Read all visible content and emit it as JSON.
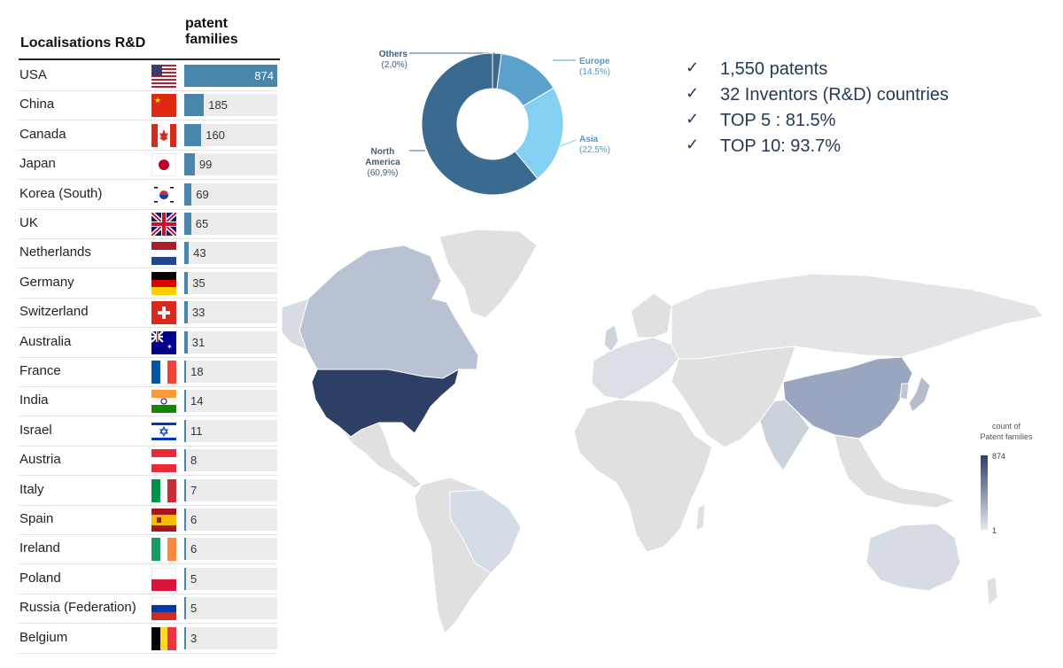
{
  "table": {
    "header_location": "Localisations R&D",
    "header_families": "patent families",
    "rows": [
      {
        "country": "USA",
        "value": 874,
        "flag": "us-flag"
      },
      {
        "country": "China",
        "value": 185,
        "flag": "cn-flag"
      },
      {
        "country": "Canada",
        "value": 160,
        "flag": "ca-flag"
      },
      {
        "country": "Japan",
        "value": 99,
        "flag": "jp-flag"
      },
      {
        "country": "Korea (South)",
        "value": 69,
        "flag": "kr-flag"
      },
      {
        "country": "UK",
        "value": 65,
        "flag": "uk-flag"
      },
      {
        "country": "Netherlands",
        "value": 43,
        "flag": "nl-flag"
      },
      {
        "country": "Germany",
        "value": 35,
        "flag": "de-flag"
      },
      {
        "country": "Switzerland",
        "value": 33,
        "flag": "ch-flag"
      },
      {
        "country": "Australia",
        "value": 31,
        "flag": "au-flag"
      },
      {
        "country": "France",
        "value": 18,
        "flag": "fr-flag"
      },
      {
        "country": "India",
        "value": 14,
        "flag": "in-flag"
      },
      {
        "country": "Israel",
        "value": 11,
        "flag": "il-flag"
      },
      {
        "country": "Austria",
        "value": 8,
        "flag": "at-flag"
      },
      {
        "country": "Italy",
        "value": 7,
        "flag": "it-flag"
      },
      {
        "country": "Spain",
        "value": 6,
        "flag": "es-flag"
      },
      {
        "country": "Ireland",
        "value": 6,
        "flag": "ie-flag"
      },
      {
        "country": "Poland",
        "value": 5,
        "flag": "pl-flag"
      },
      {
        "country": "Russia (Federation)",
        "value": 5,
        "flag": "ru-flag"
      },
      {
        "country": "Belgium",
        "value": 3,
        "flag": "be-flag"
      }
    ]
  },
  "bullets": {
    "check_icon": "check-icon",
    "items": [
      "1,550 patents",
      "32 Inventors (R&D) countries",
      "TOP 5  : 81.5%",
      "TOP 10: 93.7%"
    ]
  },
  "map_legend": {
    "title_line1": "count of",
    "title_line2": "Patent families",
    "max_label": "874",
    "min_label": "1"
  },
  "colors": {
    "bar": "#4a86ab",
    "usa_fill": "#2e3f66",
    "china_fill": "#9aa6c0",
    "canada_fill": "#b9c2d3",
    "land_fill": "#dddddd"
  },
  "chart_data": [
    {
      "type": "bar",
      "orientation": "horizontal",
      "categories": [
        "USA",
        "China",
        "Canada",
        "Japan",
        "Korea (South)",
        "UK",
        "Netherlands",
        "Germany",
        "Switzerland",
        "Australia",
        "France",
        "India",
        "Israel",
        "Austria",
        "Italy",
        "Spain",
        "Ireland",
        "Poland",
        "Russia (Federation)",
        "Belgium"
      ],
      "values": [
        874,
        185,
        160,
        99,
        69,
        65,
        43,
        35,
        33,
        31,
        18,
        14,
        11,
        8,
        7,
        6,
        6,
        5,
        5,
        3
      ],
      "xlim": [
        0,
        874
      ]
    },
    {
      "type": "pie",
      "style": "donut",
      "slices": [
        {
          "label": "Others",
          "pct_label": "(2,0%)",
          "value": 2.0,
          "color": "#3d6a8d"
        },
        {
          "label": "Europe",
          "pct_label": "(14,5%)",
          "value": 14.5,
          "color": "#5aa1cc"
        },
        {
          "label": "Asia",
          "pct_label": "(22,5%)",
          "value": 22.5,
          "color": "#83d0f2"
        },
        {
          "label": "North America",
          "label_lines": [
            "North",
            "America"
          ],
          "pct_label": "(60,9%)",
          "value": 60.9,
          "color": "#3b6a90"
        }
      ]
    },
    {
      "type": "heatmap",
      "kind": "choropleth-world-map",
      "value_range": [
        1,
        874
      ],
      "highlighted": [
        "USA",
        "China",
        "Canada"
      ]
    }
  ]
}
